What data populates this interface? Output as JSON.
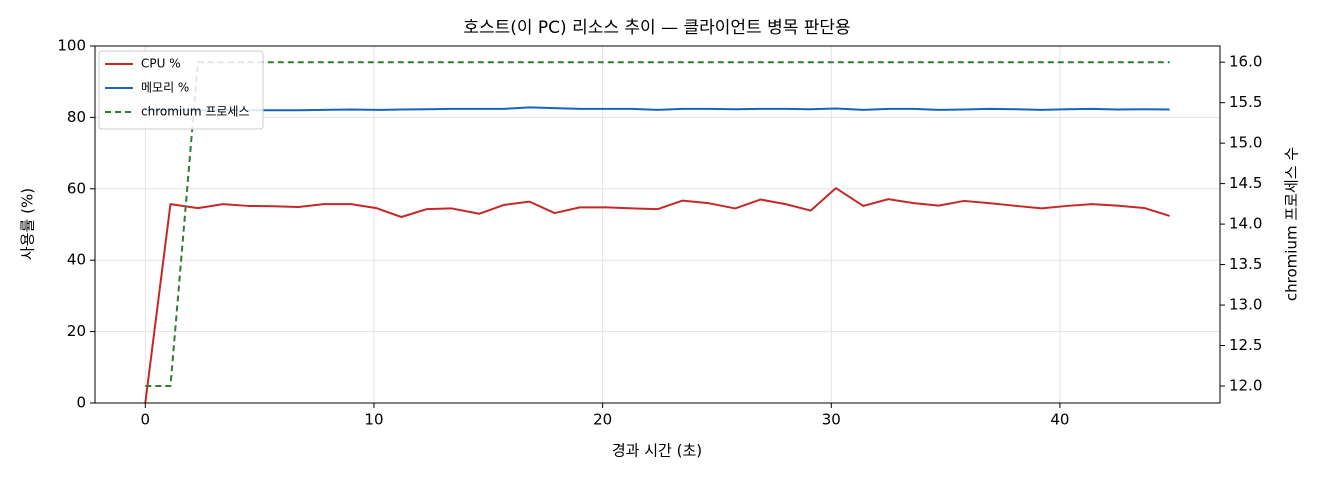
{
  "chart_data": {
    "type": "line",
    "title": "호스트(이 PC) 리소스 추이 — 클라이언트 병목 판단용",
    "x_label": "경과 시간 (초)",
    "y_label": "사용률 (%)",
    "y2_label": "chromium 프로세스 수",
    "x": [
      0,
      1.1,
      2.3,
      3.4,
      4.5,
      5.6,
      6.7,
      7.8,
      9.0,
      10.1,
      11.2,
      12.3,
      13.4,
      14.6,
      15.7,
      16.8,
      17.9,
      19.0,
      20.2,
      21.3,
      22.4,
      23.5,
      24.6,
      25.8,
      26.9,
      28.0,
      29.1,
      30.2,
      31.4,
      32.5,
      33.6,
      34.7,
      35.8,
      36.9,
      38.1,
      39.2,
      40.3,
      41.4,
      42.5,
      43.7,
      44.8
    ],
    "series": [
      {
        "name": "CPU %",
        "color": "#c62828",
        "values": [
          0,
          55.7,
          54.6,
          55.7,
          55.2,
          55.1,
          54.9,
          55.7,
          55.7,
          54.6,
          52.1,
          54.3,
          54.5,
          53.0,
          55.5,
          56.4,
          53.2,
          54.8,
          54.8,
          54.5,
          54.3,
          56.7,
          56.0,
          54.5,
          57.0,
          55.7,
          53.9,
          60.2,
          55.2,
          57.1,
          56.0,
          55.3,
          56.6,
          56.0,
          55.2,
          54.5,
          55.2,
          55.7,
          55.3,
          54.6,
          52.4
        ]
      },
      {
        "name": "메모리 %",
        "color": "#1565c0",
        "values": [
          82.0,
          82.0,
          82.0,
          82.0,
          82.0,
          82.0,
          82.0,
          82.1,
          82.2,
          82.1,
          82.2,
          82.3,
          82.4,
          82.4,
          82.4,
          82.8,
          82.6,
          82.4,
          82.4,
          82.4,
          82.1,
          82.4,
          82.4,
          82.3,
          82.4,
          82.4,
          82.3,
          82.5,
          82.1,
          82.4,
          82.4,
          82.1,
          82.2,
          82.4,
          82.3,
          82.1,
          82.3,
          82.4,
          82.2,
          82.3,
          82.2
        ]
      },
      {
        "name": "chromium 프로세스",
        "color": "#2e7d32",
        "dashed": true,
        "axis": "y2",
        "values": [
          12,
          12,
          16,
          16,
          16,
          16,
          16,
          16,
          16,
          16,
          16,
          16,
          16,
          16,
          16,
          16,
          16,
          16,
          16,
          16,
          16,
          16,
          16,
          16,
          16,
          16,
          16,
          16,
          16,
          16,
          16,
          16,
          16,
          16,
          16,
          16,
          16,
          16,
          16,
          16,
          16
        ]
      }
    ],
    "xlim": [
      -2.2,
      47.0
    ],
    "xticks": [
      0,
      10,
      20,
      30,
      40
    ],
    "ylim": [
      0,
      100
    ],
    "yticks": [
      0,
      20,
      40,
      60,
      80,
      100
    ],
    "y2lim": [
      11.79,
      16.2
    ],
    "y2ticks": [
      {
        "value": 12,
        "label": "12.0"
      },
      12.5,
      {
        "value": 13,
        "label": "13.0"
      },
      13.5,
      {
        "value": 14,
        "label": "14.0"
      },
      14.5,
      {
        "value": 15,
        "label": "15.0"
      },
      15.5,
      {
        "value": 16,
        "label": "16.0"
      }
    ],
    "grid": true,
    "legend": "upper-left"
  }
}
